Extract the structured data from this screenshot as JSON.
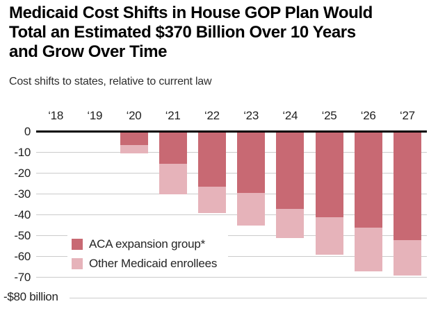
{
  "header": {
    "title_lines": [
      "Medicaid Cost Shifts in House GOP Plan Would",
      "Total an Estimated $370 Billion Over 10 Years",
      "and Grow Over Time"
    ],
    "subtitle": "Cost shifts to states, relative to current law"
  },
  "chart_data": {
    "type": "bar",
    "stacked": true,
    "orientation": "vertical",
    "unit": "billions of dollars, cost shift relative to current law",
    "categories": [
      "‘18",
      "‘19",
      "‘20",
      "‘21",
      "‘22",
      "‘23",
      "‘24",
      "‘25",
      "‘26",
      "‘27"
    ],
    "series": [
      {
        "name": "ACA expansion group*",
        "color": "#c86973",
        "values": [
          0,
          0,
          -6.5,
          -15.5,
          -26.5,
          -29.5,
          -37,
          -41,
          -46,
          -52
        ]
      },
      {
        "name": "Other Medicaid enrollees",
        "color": "#e6b3ba",
        "values": [
          0,
          0,
          -4,
          -14.5,
          -12.5,
          -15.5,
          -14,
          -18,
          -21,
          -17
        ]
      }
    ],
    "stacked_totals": [
      0,
      0,
      -10.5,
      -30,
      -39,
      -45,
      -51,
      -59,
      -67,
      -69
    ],
    "y_axis": {
      "range": [
        -80,
        0
      ],
      "grid": true,
      "ticks": [
        {
          "label": "0",
          "value": 0
        },
        {
          "label": "-10",
          "value": -10
        },
        {
          "label": "-20",
          "value": -20
        },
        {
          "label": "-30",
          "value": -30
        },
        {
          "label": "-40",
          "value": -40
        },
        {
          "label": "-50",
          "value": -50
        },
        {
          "label": "-60",
          "value": -60
        },
        {
          "label": "-70",
          "value": -70
        }
      ],
      "bottom_tick": {
        "label": "-$80 billion",
        "value": -80
      }
    },
    "legend_position": "inside-bottom-left",
    "colors": {
      "axis_line": "#000000",
      "gridline": "#cbcbcb",
      "title_text": "#000000",
      "tick_text": "#1f1f1f"
    }
  }
}
